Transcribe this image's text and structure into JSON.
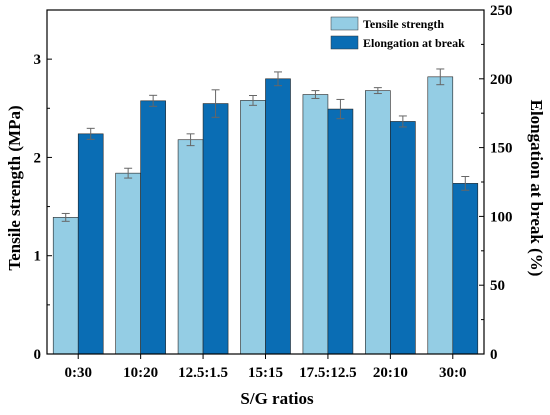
{
  "chart_data": {
    "type": "bar",
    "xlabel": "S/G ratios",
    "ylabel_left": "Tensile strength (MPa)",
    "ylabel_right": "Elongation at break (%)",
    "categories": [
      "0:30",
      "10:20",
      "12.5:1.5",
      "15:15",
      "17.5:12.5",
      "20:10",
      "30:0"
    ],
    "ylim_left": [
      0,
      3.5
    ],
    "yticks_left": [
      "0",
      "1",
      "2",
      "3"
    ],
    "ylim_right": [
      0,
      250
    ],
    "yticks_right": [
      "0",
      "50",
      "100",
      "150",
      "200",
      "250"
    ],
    "legend_position": "top-right",
    "grid": false,
    "series": [
      {
        "name": "Tensile strength",
        "axis": "left",
        "color": "#94CDE4",
        "values": [
          1.39,
          1.84,
          2.18,
          2.58,
          2.64,
          2.68,
          2.82
        ],
        "errors": [
          0.04,
          0.05,
          0.06,
          0.05,
          0.04,
          0.03,
          0.08
        ]
      },
      {
        "name": "Elongation at break",
        "axis": "right",
        "color": "#0A6DB4",
        "values": [
          160,
          184,
          182,
          200,
          178,
          169,
          124
        ],
        "errors": [
          4,
          4,
          10,
          5,
          7,
          4,
          5
        ]
      }
    ]
  }
}
